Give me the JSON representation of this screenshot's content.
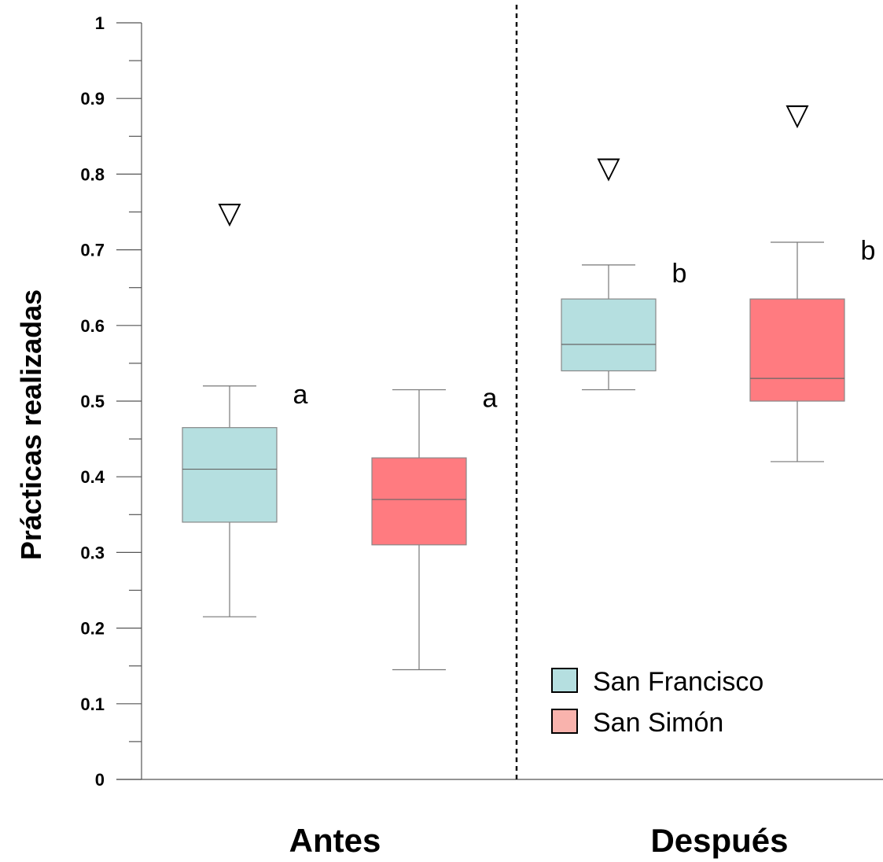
{
  "chart_data": {
    "type": "box",
    "ylabel": "Prácticas realizadas",
    "ylim": [
      0,
      1
    ],
    "yticks": [
      0,
      0.1,
      0.2,
      0.3,
      0.4,
      0.5,
      0.6,
      0.7,
      0.8,
      0.9,
      1
    ],
    "ytick_labels": [
      "0",
      "0.1",
      "0.2",
      "0.3",
      "0.4",
      "0.5",
      "0.6",
      "0.7",
      "0.8",
      "0.9",
      "1"
    ],
    "groups": [
      "Antes",
      "Después"
    ],
    "series": [
      {
        "name": "San Francisco",
        "color": "#b5dfe0",
        "boxes": [
          {
            "group": "Antes",
            "min": 0.215,
            "q1": 0.34,
            "median": 0.41,
            "q3": 0.465,
            "max": 0.52,
            "marker": 0.75,
            "letter": "a"
          },
          {
            "group": "Después",
            "min": 0.515,
            "q1": 0.54,
            "median": 0.575,
            "q3": 0.635,
            "max": 0.68,
            "marker": 0.81,
            "letter": "b"
          }
        ]
      },
      {
        "name": "San Simón",
        "color": "#ff7b80",
        "boxes": [
          {
            "group": "Antes",
            "min": 0.145,
            "q1": 0.31,
            "median": 0.37,
            "q3": 0.425,
            "max": 0.515,
            "marker": null,
            "letter": "a"
          },
          {
            "group": "Después",
            "min": 0.42,
            "q1": 0.5,
            "median": 0.53,
            "q3": 0.635,
            "max": 0.71,
            "marker": 0.88,
            "letter": "b"
          }
        ]
      }
    ],
    "divider": "dashed",
    "marker_symbol": "▽",
    "legend": {
      "placement": "bottom-right",
      "entries": [
        {
          "label": "San Francisco",
          "color": "#b5dfe0"
        },
        {
          "label": "San Simón",
          "color": "#f9b3ad"
        }
      ]
    },
    "grid": false
  }
}
